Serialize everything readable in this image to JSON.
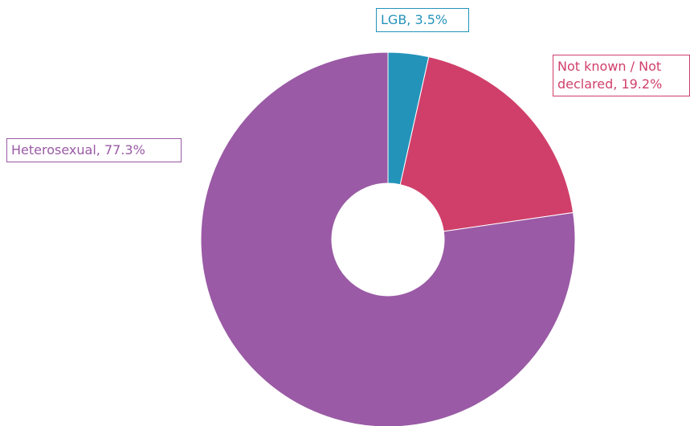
{
  "chart_data": {
    "type": "donut",
    "values": [
      3.5,
      19.2,
      77.3
    ],
    "value_labels": [
      "LGB, 3.5%",
      "Not known / Not declared, 19.2%",
      "Heterosexual, 77.3%"
    ],
    "colors": [
      "#2493b9",
      "#d03f6a",
      "#9a5aa5"
    ]
  }
}
